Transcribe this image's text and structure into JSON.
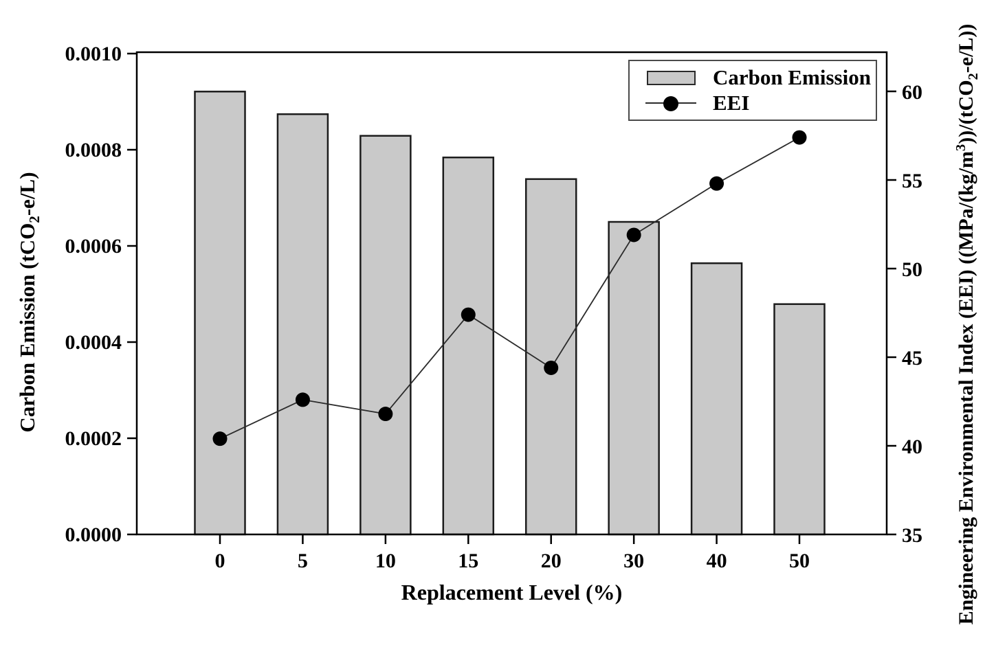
{
  "chart_data": {
    "type": "bar",
    "combo": "bar+line dual-axis",
    "categories": [
      "0",
      "5",
      "10",
      "15",
      "20",
      "30",
      "40",
      "50"
    ],
    "series": [
      {
        "name": "Carbon Emission",
        "type": "bar",
        "axis": "left",
        "values": [
          0.000921,
          0.000874,
          0.000829,
          0.000784,
          0.000739,
          0.00065,
          0.000564,
          0.000479
        ]
      },
      {
        "name": "EEI",
        "type": "line",
        "axis": "right",
        "values": [
          40.4,
          42.6,
          41.8,
          47.4,
          44.4,
          51.9,
          54.8,
          57.4
        ]
      }
    ],
    "title": "",
    "xlabel": "Replacement Level (%)",
    "left_axis": {
      "label": "Carbon Emission (tCO2-e/L)",
      "label_parts": [
        {
          "t": "Carbon Emission (tCO"
        },
        {
          "t": "2",
          "s": "sub"
        },
        {
          "t": "-e/L)"
        }
      ],
      "tick_labels": [
        "0.0000",
        "0.0002",
        "0.0004",
        "0.0006",
        "0.0008",
        "0.0010"
      ],
      "tick_values": [
        0,
        0.0002,
        0.0004,
        0.0006,
        0.0008,
        0.001
      ],
      "min": 0,
      "max": 0.001
    },
    "right_axis": {
      "label": "Engineering Environmental Index (EEI) ((MPa/(kg/m3))/(tCO2-e/L))",
      "label_parts": [
        {
          "t": "Engineering Environmental Index (EEI) ((MPa/(kg/m"
        },
        {
          "t": "3",
          "s": "sup"
        },
        {
          "t": "))/(tCO"
        },
        {
          "t": "2",
          "s": "sub"
        },
        {
          "t": "-e/L))"
        }
      ],
      "tick_labels": [
        "35",
        "40",
        "45",
        "50",
        "55",
        "60"
      ],
      "tick_values": [
        35,
        40,
        45,
        50,
        55,
        60
      ],
      "min": 35,
      "max": 62.2
    },
    "legend": {
      "position": "top-right",
      "entries": [
        "Carbon Emission",
        "EEI"
      ]
    },
    "grid": false,
    "style": {
      "bar_fill": "#c9c9c9",
      "bar_stroke": "#1c1c1c",
      "line_color": "#2b2b2b",
      "marker_color": "#000000",
      "frame_color": "#000000",
      "text_color": "#000000",
      "legend_border": "#4a4a4a",
      "background": "#ffffff"
    }
  }
}
